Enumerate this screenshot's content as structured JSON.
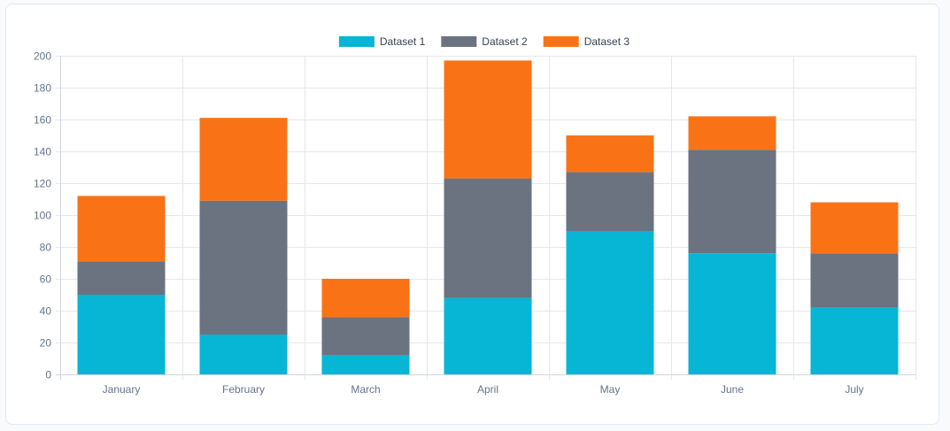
{
  "chart_data": {
    "type": "bar",
    "stacked": true,
    "categories": [
      "January",
      "February",
      "March",
      "April",
      "May",
      "June",
      "July"
    ],
    "series": [
      {
        "name": "Dataset 1",
        "color": "#06b6d4",
        "values": [
          50,
          25,
          12,
          48,
          90,
          76,
          42
        ]
      },
      {
        "name": "Dataset 2",
        "color": "#6b7280",
        "values": [
          21,
          84,
          24,
          75,
          37,
          65,
          34
        ]
      },
      {
        "name": "Dataset 3",
        "color": "#f97316",
        "values": [
          41,
          52,
          24,
          74,
          23,
          21,
          32
        ]
      }
    ],
    "yticks": [
      0,
      20,
      40,
      60,
      80,
      100,
      120,
      140,
      160,
      180,
      200
    ],
    "ylim": [
      0,
      200
    ],
    "grid": true,
    "legend": "top-center",
    "title": "",
    "xlabel": "",
    "ylabel": ""
  }
}
